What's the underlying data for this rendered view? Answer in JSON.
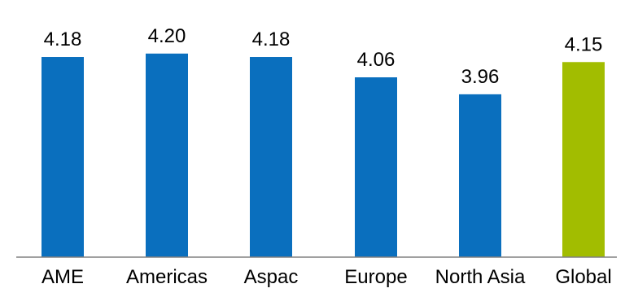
{
  "chart_data": {
    "type": "bar",
    "title": "",
    "xlabel": "",
    "ylabel": "",
    "categories": [
      "AME",
      "Americas",
      "Aspac",
      "Europe",
      "North Asia",
      "Global"
    ],
    "values": [
      4.18,
      4.2,
      4.18,
      4.06,
      3.96,
      4.15
    ],
    "value_labels": [
      "4.18",
      "4.20",
      "4.18",
      "4.06",
      "3.96",
      "4.15"
    ],
    "ylim": [
      3.0,
      4.3
    ],
    "grid": false,
    "legend": "none",
    "colors": {
      "bar": "#0a6fbe",
      "highlight_bar": "#a2bd00",
      "axis": "#808080"
    },
    "highlight_category": "Global"
  }
}
